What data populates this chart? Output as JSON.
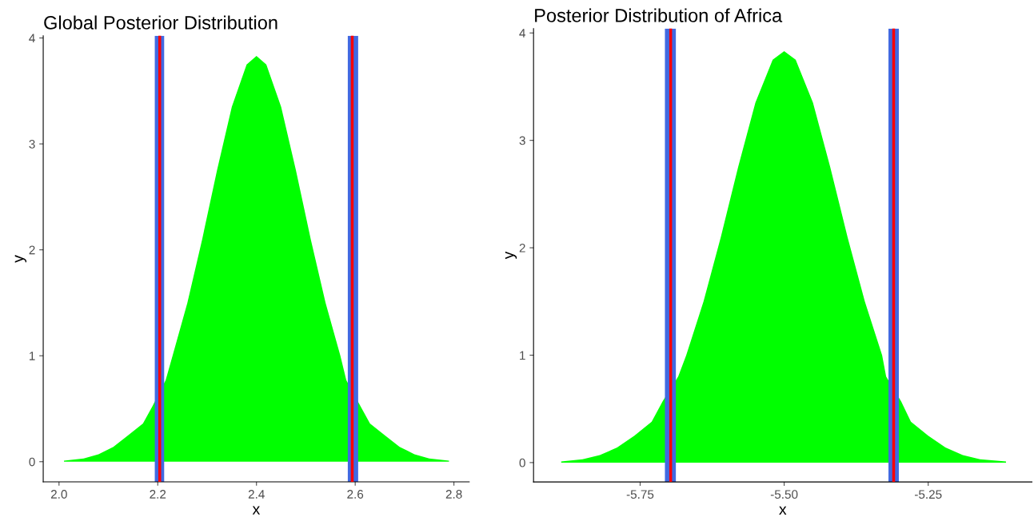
{
  "chart_data": [
    {
      "type": "area",
      "title": "Global Posterior Distribution",
      "xlabel": "x",
      "ylabel": "y",
      "series": [
        {
          "color": "#00ff00",
          "x": [
            2.01,
            2.05,
            2.08,
            2.11,
            2.14,
            2.17,
            2.19,
            2.216,
            2.23,
            2.26,
            2.29,
            2.32,
            2.35,
            2.38,
            2.4,
            2.42,
            2.45,
            2.48,
            2.51,
            2.54,
            2.57,
            2.582,
            2.61,
            2.63,
            2.66,
            2.69,
            2.72,
            2.75,
            2.79
          ],
          "values": [
            0.01,
            0.03,
            0.07,
            0.14,
            0.25,
            0.36,
            0.53,
            0.77,
            1.0,
            1.5,
            2.1,
            2.75,
            3.35,
            3.75,
            3.83,
            3.75,
            3.35,
            2.75,
            2.1,
            1.5,
            1.0,
            0.77,
            0.53,
            0.36,
            0.25,
            0.14,
            0.07,
            0.03,
            0.01
          ]
        }
      ],
      "bands": [
        {
          "axis": "x",
          "from": 2.194,
          "to": 2.213,
          "color": "#4169e1"
        },
        {
          "axis": "x",
          "from": 2.585,
          "to": 2.606,
          "color": "#4169e1"
        }
      ],
      "ref_lines": [
        {
          "axis": "x",
          "value": 2.204,
          "color": "#ff0000"
        },
        {
          "axis": "x",
          "value": 2.594,
          "color": "#ff0000"
        }
      ],
      "xlim": [
        1.968,
        2.831
      ],
      "ylim": [
        -0.19,
        4.02
      ],
      "xticks": [
        {
          "value": 2.0,
          "label": "2.0"
        },
        {
          "value": 2.2,
          "label": "2.2"
        },
        {
          "value": 2.4,
          "label": "2.4"
        },
        {
          "value": 2.6,
          "label": "2.6"
        },
        {
          "value": 2.8,
          "label": "2.8"
        }
      ],
      "yticks": [
        0,
        1,
        2,
        3,
        4
      ],
      "grid": false
    },
    {
      "type": "area",
      "title": "Posterior Distribution of Africa",
      "xlabel": "x",
      "ylabel": "y",
      "series": [
        {
          "color": "#00ff00",
          "x": [
            -5.887,
            -5.85,
            -5.82,
            -5.79,
            -5.76,
            -5.73,
            -5.711,
            -5.684,
            -5.67,
            -5.64,
            -5.61,
            -5.58,
            -5.55,
            -5.52,
            -5.5,
            -5.48,
            -5.45,
            -5.42,
            -5.39,
            -5.36,
            -5.33,
            -5.323,
            -5.297,
            -5.28,
            -5.25,
            -5.22,
            -5.19,
            -5.16,
            -5.115
          ],
          "values": [
            0.01,
            0.03,
            0.07,
            0.14,
            0.25,
            0.38,
            0.57,
            0.8,
            1.0,
            1.5,
            2.1,
            2.75,
            3.35,
            3.75,
            3.83,
            3.75,
            3.35,
            2.75,
            2.1,
            1.5,
            1.0,
            0.8,
            0.57,
            0.38,
            0.25,
            0.14,
            0.07,
            0.03,
            0.01
          ]
        }
      ],
      "bands": [
        {
          "axis": "x",
          "from": -5.707,
          "to": -5.688,
          "color": "#4169e1"
        },
        {
          "axis": "x",
          "from": -5.319,
          "to": -5.301,
          "color": "#4169e1"
        }
      ],
      "ref_lines": [
        {
          "axis": "x",
          "value": -5.697,
          "color": "#ff0000"
        },
        {
          "axis": "x",
          "value": -5.31,
          "color": "#ff0000"
        }
      ],
      "xlim": [
        -5.935,
        -5.07
      ],
      "ylim": [
        -0.18,
        4.04
      ],
      "xticks": [
        {
          "value": -5.75,
          "label": "-5.75"
        },
        {
          "value": -5.5,
          "label": "-5.50"
        },
        {
          "value": -5.25,
          "label": "-5.25"
        }
      ],
      "yticks": [
        0,
        1,
        2,
        3,
        4
      ],
      "grid": false
    }
  ]
}
